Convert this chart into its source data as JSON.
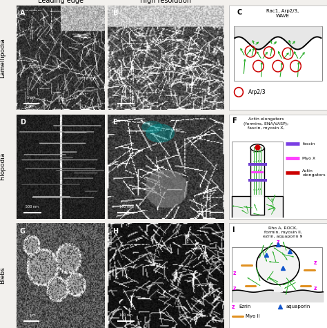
{
  "title_leading": "Leading edge",
  "title_resolution": "High resolution",
  "row_labels": [
    "Lamellipodia",
    "Filopodia",
    "Blebs"
  ],
  "panel_C_title": "Rac1, Arp2/3,\nWAVE",
  "panel_C_legend": "Arp2/3",
  "panel_F_title": "Actin elongaters\n(formins, ENA/VASP);\nfascin, myosin X,",
  "panel_F_legend": [
    [
      "fascin",
      "#7b3fe4"
    ],
    [
      "Myo X",
      "#ff40ff"
    ],
    [
      "Actin\nelongators",
      "#cc0000"
    ]
  ],
  "panel_I_title": "Rho A, ROCK,\nformin, myosin II,\nezrin, aquaporin 9",
  "panel_I_legend_ezrin": "z Ezrin",
  "panel_I_legend_aquaporin": "aquaporin",
  "panel_I_legend_myo": "Myo II",
  "bg_color": "#f2f0ed",
  "diagram_bg": "#ffffff",
  "green_color": "#22aa22",
  "black_color": "#000000",
  "red_color": "#cc0000",
  "purple_color": "#7040d0",
  "pink_color": "#ff40ff",
  "magenta_color": "#ee00ee",
  "orange_color": "#e09020",
  "blue_color": "#1155cc",
  "cyan_color": "#00aaaa",
  "gray_cell": "#d8d8d8"
}
